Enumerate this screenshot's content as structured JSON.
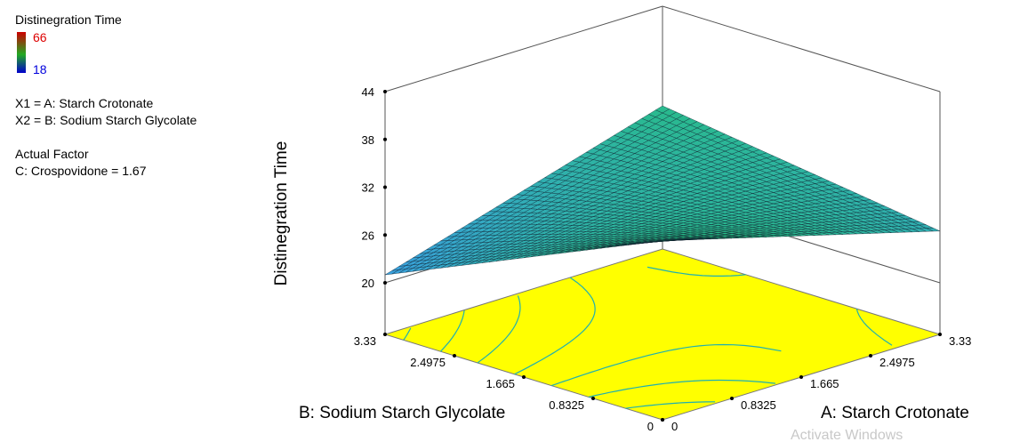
{
  "legend": {
    "response_title": "Distinegration Time",
    "scale_max": "66",
    "scale_min": "18",
    "x1": "X1 = A: Starch Crotonate",
    "x2": "X2 = B: Sodium Starch Glycolate",
    "actual_factor_title": "Actual Factor",
    "actual_factor_value": "C: Crospovidone = 1.67",
    "scale_colors": [
      "#cc0000",
      "#22aa22",
      "#0000cc"
    ]
  },
  "watermark": "Activate Windows",
  "chart_data": {
    "type": "surface-3d",
    "zlabel": "Distinegration Time",
    "xlabel": "A: Starch Crotonate",
    "ylabel": "B: Sodium Starch Glycolate",
    "z_ticks": [
      "20",
      "26",
      "32",
      "38",
      "44"
    ],
    "x_ticks": [
      "0",
      "0.8325",
      "1.665",
      "2.4975",
      "3.33"
    ],
    "y_ticks": [
      "0",
      "0.8325",
      "1.665",
      "2.4975",
      "3.33"
    ],
    "zlim": [
      20,
      44
    ],
    "xlim": [
      0,
      3.33
    ],
    "ylim": [
      0,
      3.33
    ],
    "corner_values": [
      {
        "A": 0,
        "B": 3.33,
        "z": 21
      },
      {
        "A": 3.33,
        "B": 3.33,
        "z": 31.5
      },
      {
        "A": 0,
        "B": 0,
        "z": 36
      },
      {
        "A": 3.33,
        "B": 0,
        "z": 26.5
      }
    ],
    "floor_color": "#ffff00",
    "contour_color": "#20b0b0",
    "surface_colors": [
      "#3aa0e0",
      "#20c060"
    ]
  }
}
